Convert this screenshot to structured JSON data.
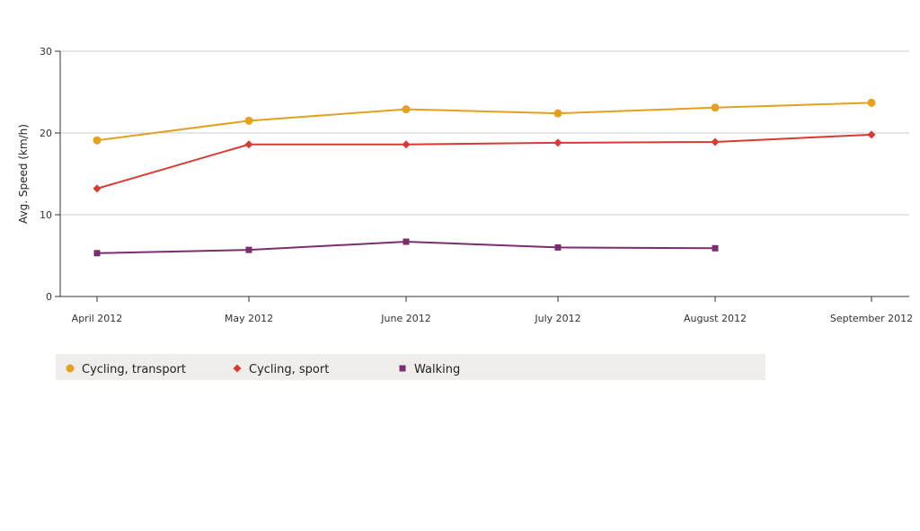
{
  "chart_data": {
    "type": "line",
    "title": "",
    "xlabel": "",
    "ylabel": "Avg. Speed (km/h)",
    "ylim": [
      0,
      30
    ],
    "yticks": [
      0,
      10,
      20,
      30
    ],
    "grid": true,
    "legend_position": "bottom-left",
    "categories": [
      "April 2012",
      "May 2012",
      "June 2012",
      "July 2012",
      "August 2012",
      "September 2012"
    ],
    "series": [
      {
        "name": "Cycling, transport",
        "color": "#e6a020",
        "marker": "circle",
        "values": [
          19.1,
          21.5,
          22.9,
          22.4,
          23.1,
          23.7
        ]
      },
      {
        "name": "Cycling, sport",
        "color": "#d93a32",
        "marker": "diamond",
        "values": [
          13.2,
          18.6,
          18.6,
          18.8,
          18.9,
          19.8
        ]
      },
      {
        "name": "Walking",
        "color": "#7b2d6e",
        "marker": "square",
        "values": [
          5.3,
          5.7,
          6.7,
          6.0,
          5.9,
          null
        ]
      }
    ],
    "legend_bg": "#efeeea",
    "axis_color": "#333333",
    "grid_color": "#cccccc"
  }
}
